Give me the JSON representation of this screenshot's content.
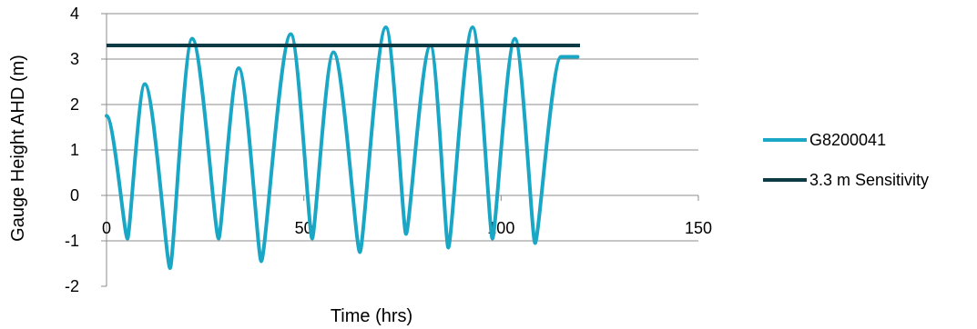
{
  "chart_data": {
    "type": "line",
    "title": "",
    "xlabel": "Time (hrs)",
    "ylabel": "Gauge Height AHD (m)",
    "xlim": [
      0,
      150
    ],
    "ylim": [
      -2,
      4
    ],
    "xticks": [
      0,
      50,
      100,
      150
    ],
    "yticks": [
      -2,
      -1,
      0,
      1,
      2,
      3,
      4
    ],
    "grid": "horizontal",
    "legend_position": "right",
    "series": [
      {
        "name": "G8200041",
        "color": "#1aa7c6",
        "x": [
          0,
          5.3,
          9.7,
          16.1,
          21.7,
          28.4,
          33.5,
          39.2,
          46.7,
          52.1,
          57.5,
          64.2,
          70.8,
          75.9,
          82.1,
          86.6,
          92.8,
          97.8,
          103.5,
          108.6,
          115.2,
          119.4
        ],
        "y": [
          1.75,
          -0.95,
          2.45,
          -1.6,
          3.45,
          -0.95,
          2.8,
          -1.45,
          3.55,
          -0.95,
          3.15,
          -1.25,
          3.7,
          -0.85,
          3.3,
          -1.15,
          3.7,
          -0.95,
          3.45,
          -1.05,
          3.05,
          null
        ]
      },
      {
        "name": "3.3 m Sensitivity",
        "color": "#0d3b45",
        "x": [
          0,
          120
        ],
        "y": [
          3.3,
          3.3
        ]
      }
    ]
  }
}
